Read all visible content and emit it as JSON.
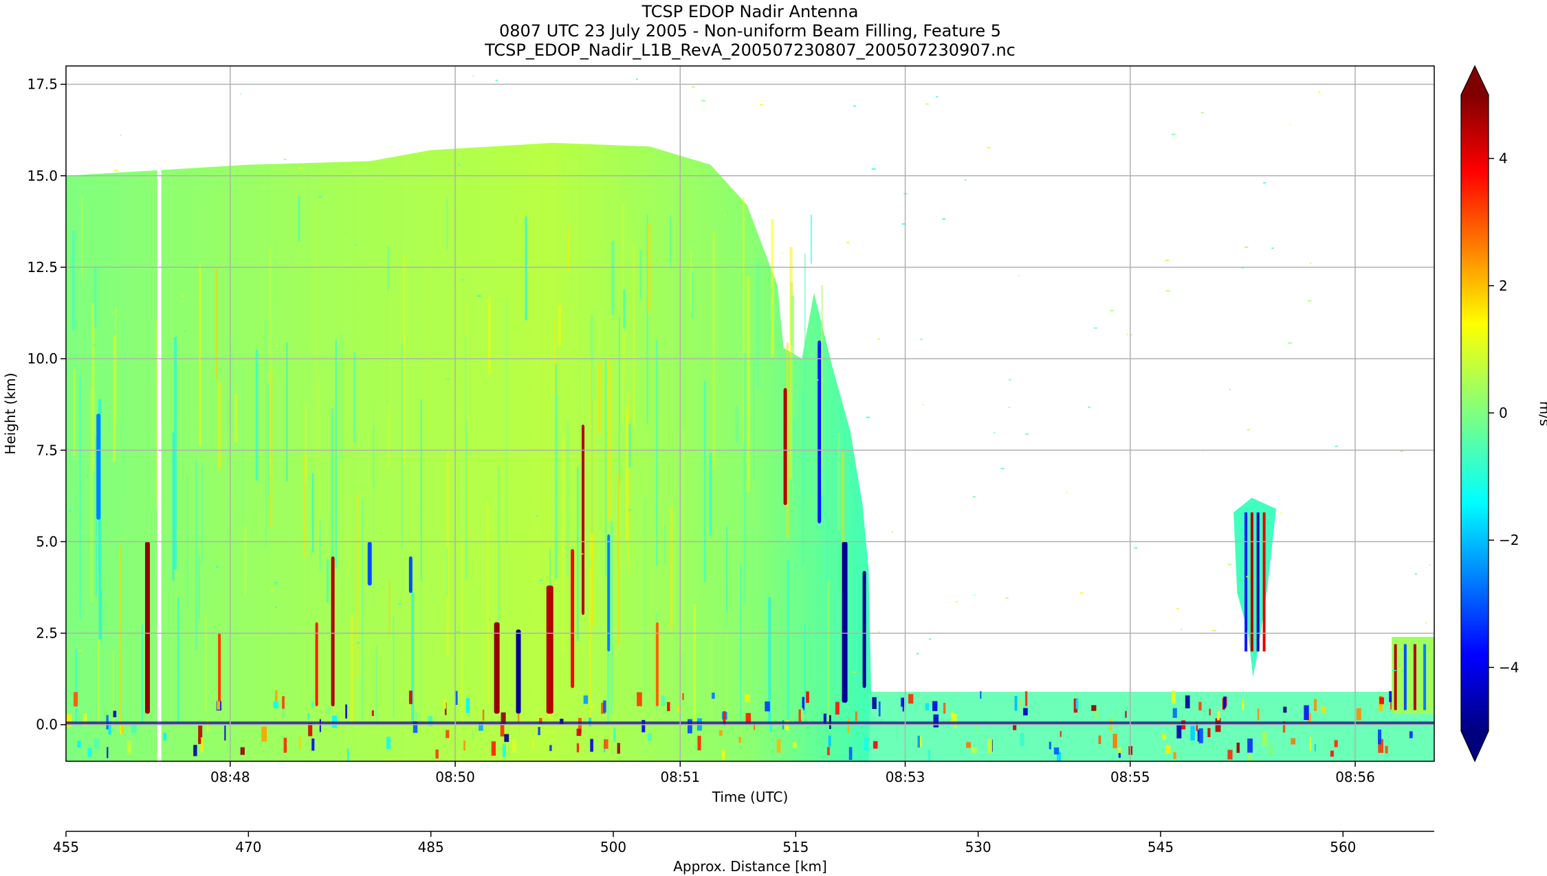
{
  "chart_data": {
    "type": "heatmap",
    "title_lines": [
      "TCSP EDOP Nadir Antenna",
      "0807 UTC 23 July 2005 - Non-uniform Beam Filling, Feature 5",
      "TCSP_EDOP_Nadir_L1B_RevA_200507230807_200507230907.nc"
    ],
    "xlabel": "Time (UTC)",
    "ylabel": "Height (km)",
    "secondary_xlabel": "Approx. Distance [km]",
    "colorbar_label": "m/s",
    "x_time_ticks": [
      "08:48",
      "08:50",
      "08:51",
      "08:53",
      "08:55",
      "08:56"
    ],
    "x_time_tick_distance_km": [
      468.5,
      487.0,
      505.5,
      524.0,
      542.5,
      561.0
    ],
    "y_ticks": [
      "0.0",
      "2.5",
      "5.0",
      "7.5",
      "10.0",
      "12.5",
      "15.0",
      "17.5"
    ],
    "y_tick_values": [
      0,
      2.5,
      5,
      7.5,
      10,
      12.5,
      15,
      17.5
    ],
    "ylim": [
      -1,
      18
    ],
    "distance_ticks": [
      "455",
      "470",
      "485",
      "500",
      "515",
      "530",
      "545",
      "560"
    ],
    "distance_tick_values": [
      455,
      470,
      485,
      500,
      515,
      530,
      545,
      560
    ],
    "distance_range_km": [
      455,
      567.5
    ],
    "colorbar_ticks": [
      "4",
      "2",
      "0",
      "−2",
      "−4"
    ],
    "colorbar_tick_values": [
      4,
      2,
      0,
      -2,
      -4
    ],
    "colorbar_range": [
      -5,
      5
    ],
    "colorbar_extend": "both",
    "colormap": "jet",
    "grid": true,
    "regions": {
      "main_cloud": {
        "distance_km": [
          455,
          521
        ],
        "top_height_km": [
          15,
          15.5
        ]
      },
      "narrow_cell": {
        "distance_km": [
          551,
          554.5
        ],
        "height_km": [
          1.3,
          6.2
        ]
      },
      "right_edge_cell": {
        "distance_km": [
          564,
          567.5
        ],
        "height_km": [
          0.3,
          2.4
        ]
      }
    }
  }
}
